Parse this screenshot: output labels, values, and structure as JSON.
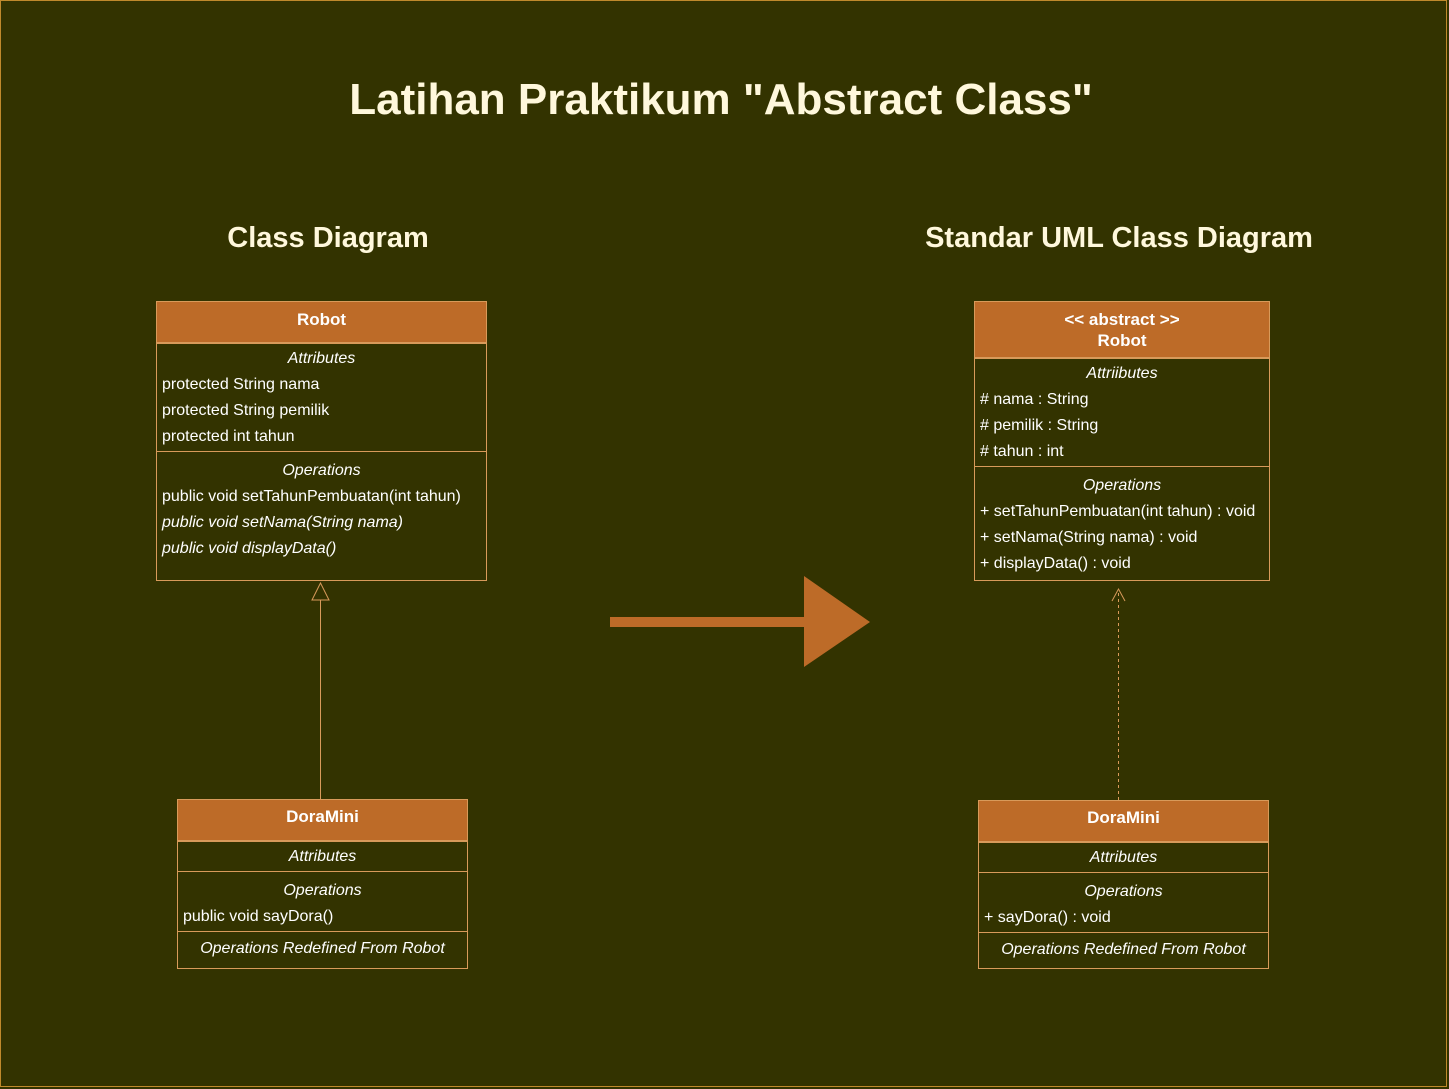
{
  "title": "Latihan Praktikum \"Abstract Class\"",
  "left": {
    "heading": "Class Diagram",
    "robot": {
      "name": "Robot",
      "attributes_caption": "Attributes",
      "attributes": [
        "protected String nama",
        "protected String pemilik",
        "protected int tahun"
      ],
      "operations_caption": "Operations",
      "operations": [
        "public void setTahunPembuatan(int tahun)",
        "public void setNama(String nama)",
        "public void displayData()"
      ]
    },
    "doramini": {
      "name": "DoraMini",
      "attributes_caption": "Attributes",
      "operations_caption": "Operations",
      "operations": [
        "public void sayDora()"
      ],
      "redefined_caption": "Operations Redefined From Robot"
    }
  },
  "right": {
    "heading": "Standar UML Class Diagram",
    "robot": {
      "stereotype": "<< abstract >>",
      "name": "Robot",
      "attributes_caption": "Attriibutes",
      "attributes": [
        "# nama : String",
        "# pemilik : String",
        "# tahun : int"
      ],
      "operations_caption": "Operations",
      "operations": [
        "+ setTahunPembuatan(int tahun) : void",
        "+ setNama(String nama) : void",
        "+ displayData() : void"
      ]
    },
    "doramini": {
      "name": "DoraMini",
      "attributes_caption": "Attributes",
      "operations_caption": "Operations",
      "operations": [
        "+ sayDora() : void"
      ],
      "redefined_caption": "Operations Redefined From Robot"
    }
  },
  "colors": {
    "background": "#333300",
    "header_fill": "#bd6b28",
    "border": "#d89a5a",
    "arrow": "#bd6b28"
  }
}
